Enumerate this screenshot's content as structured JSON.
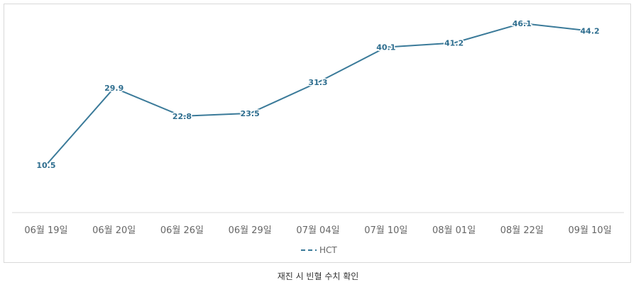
{
  "chart_data": {
    "type": "line",
    "categories": [
      "06월 19일",
      "06월 20일",
      "06월 26일",
      "06월 29일",
      "07월 04일",
      "07월 10일",
      "08월 01일",
      "08월 22일",
      "09월 10일"
    ],
    "series": [
      {
        "name": "HCT",
        "values": [
          10.5,
          29.9,
          22.8,
          23.5,
          31.3,
          40.1,
          41.2,
          46.1,
          44.2
        ]
      }
    ],
    "ylim": [
      0,
      50
    ],
    "grid": false,
    "legend": "bottom",
    "line_color": "#3a7a99",
    "label_color": "#2f6e8f"
  },
  "caption": "재진 시 빈혈 수치 확인"
}
